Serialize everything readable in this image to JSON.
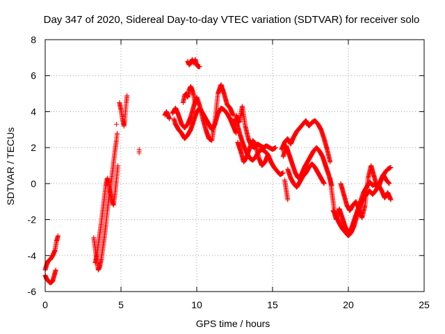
{
  "chart_data": {
    "type": "scatter",
    "title": "Day 347 of 2020, Sidereal Day-to-day VTEC variation (SDTVAR) for receiver solo",
    "xlabel": "GPS time / hours",
    "ylabel": "SDTVAR / TECUs",
    "xlim": [
      0,
      25
    ],
    "ylim": [
      -6,
      8
    ],
    "xticks": [
      0,
      5,
      10,
      15,
      20,
      25
    ],
    "yticks": [
      -6,
      -4,
      -2,
      0,
      2,
      4,
      6,
      8
    ],
    "xtick_labels": [
      "0",
      "5",
      "10",
      "15",
      "20",
      "25"
    ],
    "ytick_labels": [
      "-6",
      "-4",
      "-2",
      "0",
      "2",
      "4",
      "6",
      "8"
    ],
    "grid": true,
    "marker": "+",
    "series": [
      {
        "name": "SDTVAR",
        "color": "#ff0000",
        "segments": [
          [
            [
              0.0,
              -5.1
            ],
            [
              0.1,
              -5.3
            ],
            [
              0.2,
              -5.4
            ],
            [
              0.3,
              -5.5
            ],
            [
              0.4,
              -5.5
            ],
            [
              0.5,
              -5.4
            ],
            [
              0.6,
              -5.1
            ],
            [
              0.7,
              -4.8
            ]
          ],
          [
            [
              0.0,
              -4.8
            ],
            [
              0.1,
              -4.5
            ],
            [
              0.2,
              -4.3
            ],
            [
              0.35,
              -4.2
            ],
            [
              0.5,
              -4.0
            ],
            [
              0.65,
              -3.7
            ],
            [
              0.75,
              -3.2
            ],
            [
              0.85,
              -2.9
            ]
          ],
          [
            [
              3.2,
              -3.0
            ],
            [
              3.3,
              -3.6
            ],
            [
              3.4,
              -4.3
            ],
            [
              3.5,
              -4.8
            ],
            [
              3.6,
              -4.6
            ],
            [
              3.7,
              -4.2
            ],
            [
              3.8,
              -3.6
            ],
            [
              3.9,
              -3.0
            ],
            [
              4.0,
              -2.3
            ],
            [
              4.1,
              -1.5
            ],
            [
              4.2,
              -0.8
            ],
            [
              4.3,
              -0.2
            ],
            [
              4.4,
              0.4
            ],
            [
              4.5,
              1.1
            ],
            [
              4.6,
              1.8
            ],
            [
              4.7,
              2.4
            ],
            [
              4.75,
              2.8
            ]
          ],
          [
            [
              3.3,
              -4.4
            ],
            [
              3.4,
              -4.0
            ],
            [
              3.5,
              -3.4
            ],
            [
              3.6,
              -2.8
            ],
            [
              3.7,
              -2.2
            ],
            [
              3.8,
              -1.5
            ],
            [
              3.9,
              -0.8
            ],
            [
              4.0,
              -0.1
            ],
            [
              4.1,
              0.3
            ],
            [
              4.2,
              0.0
            ],
            [
              4.3,
              -0.5
            ],
            [
              4.4,
              -0.9
            ],
            [
              4.5,
              -1.2
            ],
            [
              4.6,
              -0.6
            ],
            [
              4.7,
              0.2
            ],
            [
              4.8,
              1.0
            ]
          ],
          [
            [
              4.9,
              4.5
            ],
            [
              5.0,
              4.1
            ],
            [
              5.1,
              3.6
            ],
            [
              5.2,
              3.2
            ],
            [
              5.25,
              3.5
            ],
            [
              5.3,
              4.0
            ],
            [
              5.35,
              4.5
            ],
            [
              5.4,
              4.9
            ]
          ],
          [
            [
              4.7,
              3.3
            ]
          ],
          [
            [
              6.2,
              1.9
            ],
            [
              6.2,
              1.7
            ]
          ],
          [
            [
              7.9,
              3.8
            ],
            [
              8.0,
              4.0
            ],
            [
              8.1,
              3.8
            ],
            [
              8.2,
              3.6
            ]
          ],
          [
            [
              8.5,
              3.6
            ],
            [
              8.6,
              3.3
            ],
            [
              8.8,
              3.0
            ],
            [
              9.0,
              2.8
            ],
            [
              9.2,
              2.5
            ],
            [
              9.4,
              2.7
            ],
            [
              9.6,
              3.0
            ],
            [
              9.8,
              3.5
            ],
            [
              10.0,
              4.0
            ],
            [
              10.2,
              4.2
            ],
            [
              10.4,
              3.9
            ],
            [
              10.6,
              3.6
            ],
            [
              10.8,
              3.3
            ],
            [
              11.0,
              3.0
            ],
            [
              11.2,
              3.3
            ],
            [
              11.4,
              3.9
            ],
            [
              11.6,
              4.2
            ],
            [
              11.8,
              4.1
            ],
            [
              12.0,
              3.9
            ],
            [
              12.2,
              3.6
            ],
            [
              12.4,
              3.2
            ],
            [
              12.6,
              2.8
            ]
          ],
          [
            [
              8.4,
              3.9
            ],
            [
              8.6,
              4.2
            ],
            [
              8.8,
              3.8
            ],
            [
              9.0,
              3.3
            ],
            [
              9.2,
              3.1
            ],
            [
              9.4,
              3.3
            ],
            [
              9.6,
              3.7
            ],
            [
              9.8,
              4.3
            ],
            [
              10.0,
              4.8
            ],
            [
              10.2,
              4.3
            ],
            [
              10.4,
              3.6
            ],
            [
              10.6,
              3.0
            ],
            [
              10.8,
              2.5
            ],
            [
              11.0,
              2.4
            ],
            [
              11.2,
              3.5
            ],
            [
              11.4,
              5.0
            ],
            [
              11.6,
              5.5
            ],
            [
              11.8,
              5.0
            ],
            [
              12.0,
              4.4
            ],
            [
              12.2,
              4.2
            ],
            [
              12.4,
              3.8
            ]
          ],
          [
            [
              9.1,
              4.5
            ],
            [
              9.2,
              4.9
            ],
            [
              9.3,
              5.0
            ],
            [
              9.4,
              4.8
            ],
            [
              9.5,
              5.2
            ],
            [
              9.6,
              5.4
            ],
            [
              9.7,
              5.2
            ],
            [
              9.8,
              4.9
            ],
            [
              9.9,
              4.4
            ]
          ],
          [
            [
              9.4,
              6.8
            ],
            [
              9.5,
              6.6
            ],
            [
              9.6,
              6.7
            ],
            [
              9.7,
              6.9
            ],
            [
              9.8,
              6.7
            ],
            [
              9.9,
              6.9
            ],
            [
              10.0,
              6.6
            ],
            [
              10.1,
              6.5
            ],
            [
              10.2,
              6.5
            ]
          ],
          [
            [
              12.5,
              3.6
            ],
            [
              12.7,
              3.2
            ],
            [
              12.9,
              2.6
            ],
            [
              13.1,
              2.1
            ],
            [
              13.3,
              1.7
            ],
            [
              13.5,
              1.4
            ],
            [
              13.7,
              1.3
            ],
            [
              13.9,
              1.5
            ],
            [
              14.1,
              1.8
            ],
            [
              14.3,
              1.9
            ],
            [
              14.5,
              1.8
            ],
            [
              14.7,
              1.6
            ],
            [
              14.9,
              1.2
            ],
            [
              15.1,
              0.9
            ],
            [
              15.3,
              0.7
            ],
            [
              15.5,
              0.5
            ],
            [
              15.7,
              0.6
            ]
          ],
          [
            [
              12.6,
              3.8
            ],
            [
              12.8,
              3.4
            ],
            [
              13.0,
              4.3
            ],
            [
              13.2,
              3.2
            ],
            [
              13.4,
              2.5
            ],
            [
              13.6,
              2.1
            ],
            [
              13.8,
              2.0
            ],
            [
              14.0,
              2.2
            ],
            [
              14.2,
              2.1
            ],
            [
              14.4,
              2.0
            ],
            [
              14.6,
              2.1
            ],
            [
              14.8,
              2.0
            ],
            [
              15.0,
              1.9
            ],
            [
              15.2,
              2.0
            ]
          ],
          [
            [
              12.7,
              2.3
            ],
            [
              12.9,
              1.8
            ],
            [
              13.1,
              1.2
            ],
            [
              13.3,
              1.5
            ],
            [
              13.5,
              2.0
            ],
            [
              13.7,
              2.4
            ],
            [
              13.9,
              2.1
            ],
            [
              14.1,
              1.4
            ],
            [
              14.3,
              1.0
            ],
            [
              14.5,
              1.2
            ],
            [
              14.7,
              1.6
            ]
          ],
          [
            [
              15.8,
              0.2
            ],
            [
              16.0,
              -0.9
            ]
          ],
          [
            [
              15.6,
              1.9
            ],
            [
              15.8,
              2.3
            ],
            [
              16.0,
              2.5
            ],
            [
              16.2,
              2.2
            ],
            [
              16.4,
              2.6
            ],
            [
              16.6,
              2.9
            ],
            [
              16.8,
              3.1
            ],
            [
              17.0,
              3.3
            ],
            [
              17.2,
              3.5
            ],
            [
              17.4,
              3.2
            ],
            [
              17.6,
              3.4
            ],
            [
              17.8,
              3.5
            ],
            [
              18.0,
              3.3
            ],
            [
              18.2,
              3.0
            ],
            [
              18.4,
              2.5
            ],
            [
              18.6,
              1.9
            ],
            [
              18.8,
              1.2
            ]
          ],
          [
            [
              15.7,
              1.5
            ],
            [
              15.9,
              2.1
            ],
            [
              16.1,
              1.6
            ],
            [
              16.3,
              1.1
            ],
            [
              16.5,
              0.6
            ],
            [
              16.7,
              0.3
            ],
            [
              16.9,
              0.5
            ],
            [
              17.1,
              0.9
            ],
            [
              17.3,
              1.2
            ],
            [
              17.5,
              1.5
            ],
            [
              17.7,
              1.8
            ],
            [
              17.9,
              2.0
            ],
            [
              18.1,
              1.8
            ],
            [
              18.3,
              1.5
            ],
            [
              18.5,
              1.0
            ],
            [
              18.7,
              0.5
            ],
            [
              18.9,
              -0.1
            ]
          ],
          [
            [
              16.0,
              0.8
            ],
            [
              16.2,
              0.3
            ],
            [
              16.4,
              0.0
            ],
            [
              16.6,
              -0.2
            ],
            [
              16.8,
              0.1
            ],
            [
              17.0,
              0.4
            ],
            [
              17.2,
              0.6
            ],
            [
              17.4,
              0.9
            ],
            [
              17.6,
              1.1
            ],
            [
              17.8,
              0.9
            ],
            [
              18.0,
              0.6
            ],
            [
              18.2,
              0.3
            ],
            [
              18.4,
              0.0
            ]
          ],
          [
            [
              18.8,
              0.3
            ],
            [
              18.9,
              -0.4
            ],
            [
              19.0,
              -1.0
            ],
            [
              19.1,
              -1.7
            ],
            [
              19.2,
              -2.0
            ],
            [
              19.4,
              -1.4
            ],
            [
              19.6,
              -1.9
            ],
            [
              19.8,
              -2.4
            ],
            [
              20.0,
              -2.8
            ],
            [
              20.2,
              -2.5
            ],
            [
              20.4,
              -2.0
            ],
            [
              20.6,
              -1.5
            ],
            [
              20.8,
              -1.0
            ],
            [
              21.0,
              -0.5
            ],
            [
              21.2,
              -0.2
            ],
            [
              21.4,
              0.1
            ],
            [
              21.6,
              -0.1
            ],
            [
              21.8,
              0.0
            ],
            [
              22.0,
              -0.2
            ],
            [
              22.2,
              0.3
            ],
            [
              22.4,
              0.6
            ],
            [
              22.6,
              0.8
            ],
            [
              22.8,
              0.9
            ]
          ],
          [
            [
              19.0,
              -1.5
            ],
            [
              19.2,
              -1.8
            ],
            [
              19.4,
              -2.2
            ],
            [
              19.6,
              -2.5
            ],
            [
              19.8,
              -2.7
            ],
            [
              20.0,
              -2.9
            ],
            [
              20.2,
              -2.7
            ],
            [
              20.4,
              -2.3
            ],
            [
              20.6,
              -1.7
            ],
            [
              20.8,
              -1.2
            ],
            [
              21.0,
              -0.8
            ],
            [
              21.2,
              -0.6
            ],
            [
              21.4,
              -0.4
            ],
            [
              21.6,
              -0.6
            ],
            [
              21.8,
              -0.4
            ],
            [
              22.0,
              -0.1
            ],
            [
              22.2,
              -0.4
            ],
            [
              22.4,
              -0.8
            ],
            [
              22.6,
              -0.5
            ],
            [
              22.8,
              -0.9
            ]
          ],
          [
            [
              19.5,
              0.0
            ],
            [
              19.7,
              -0.6
            ],
            [
              19.9,
              -1.2
            ],
            [
              20.1,
              -1.5
            ],
            [
              20.3,
              -1.2
            ],
            [
              20.5,
              -1.0
            ],
            [
              20.7,
              -1.4
            ],
            [
              20.9,
              -1.9
            ],
            [
              21.1,
              -1.2
            ],
            [
              21.3,
              0.3
            ],
            [
              21.5,
              1.0
            ],
            [
              21.7,
              0.4
            ],
            [
              21.9,
              -0.2
            ],
            [
              22.1,
              0.1
            ],
            [
              22.3,
              0.5
            ],
            [
              22.5,
              0.2
            ],
            [
              22.7,
              0.0
            ]
          ]
        ]
      }
    ]
  }
}
